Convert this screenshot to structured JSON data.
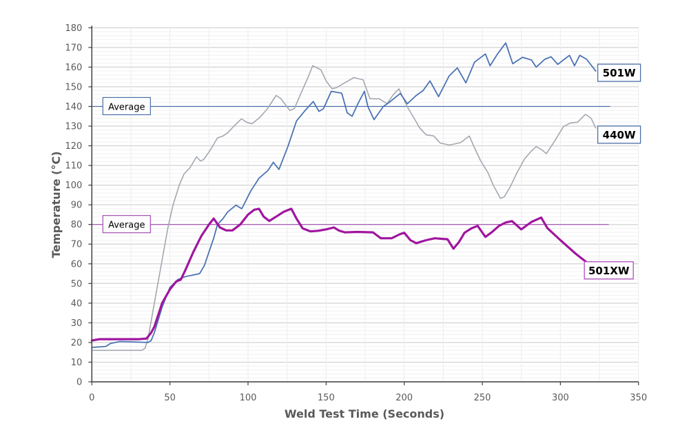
{
  "chart_data": {
    "type": "line",
    "title": "",
    "xlabel": "Weld Test Time (Seconds)",
    "ylabel": "Temperature (°C)",
    "xlim": [
      0,
      350
    ],
    "ylim": [
      0,
      180
    ],
    "xticks": [
      0,
      50,
      100,
      150,
      200,
      250,
      300,
      350
    ],
    "yticks": [
      0,
      10,
      20,
      30,
      40,
      50,
      60,
      70,
      80,
      90,
      100,
      110,
      120,
      130,
      140,
      150,
      160,
      170,
      180
    ],
    "grid": true,
    "series": [
      {
        "name": "440W",
        "color": "#a3a7b0",
        "width": 1.6,
        "points": [
          [
            0,
            16
          ],
          [
            32,
            16
          ],
          [
            34,
            17
          ],
          [
            36,
            22
          ],
          [
            40,
            40
          ],
          [
            45,
            62
          ],
          [
            48.6,
            78
          ],
          [
            52,
            90
          ],
          [
            56,
            100
          ],
          [
            59,
            105.6
          ],
          [
            63,
            109
          ],
          [
            67,
            114.4
          ],
          [
            69.5,
            112.3
          ],
          [
            71.6,
            113
          ],
          [
            76,
            118
          ],
          [
            80.4,
            124
          ],
          [
            84,
            125
          ],
          [
            87,
            126.6
          ],
          [
            91,
            130
          ],
          [
            95.8,
            133.7
          ],
          [
            99,
            132
          ],
          [
            102.5,
            131.2
          ],
          [
            107.6,
            134.5
          ],
          [
            112.2,
            138.6
          ],
          [
            118,
            145.6
          ],
          [
            121,
            144
          ],
          [
            126.8,
            137.9
          ],
          [
            129.7,
            139
          ],
          [
            134.3,
            147.4
          ],
          [
            138,
            154
          ],
          [
            141.4,
            160.7
          ],
          [
            146.7,
            158.6
          ],
          [
            150,
            153
          ],
          [
            153.8,
            149
          ],
          [
            156.8,
            149.6
          ],
          [
            161.9,
            152
          ],
          [
            167.8,
            154.7
          ],
          [
            173.7,
            153.5
          ],
          [
            178.1,
            143.9
          ],
          [
            184,
            143.9
          ],
          [
            189,
            141.4
          ],
          [
            193,
            146
          ],
          [
            196.6,
            149
          ],
          [
            202,
            139.8
          ],
          [
            206,
            134.4
          ],
          [
            210,
            129
          ],
          [
            214,
            125.6
          ],
          [
            219,
            125
          ],
          [
            223,
            121.4
          ],
          [
            229,
            120.4
          ],
          [
            236,
            121.6
          ],
          [
            241.7,
            125
          ],
          [
            245,
            119
          ],
          [
            249,
            112.3
          ],
          [
            253.6,
            106.3
          ],
          [
            257,
            100
          ],
          [
            261.6,
            93.3
          ],
          [
            264,
            94
          ],
          [
            268,
            99.3
          ],
          [
            272,
            106
          ],
          [
            277,
            113.3
          ],
          [
            281,
            117
          ],
          [
            284.5,
            119.6
          ],
          [
            288,
            118
          ],
          [
            291,
            116
          ],
          [
            296,
            122
          ],
          [
            302,
            129.8
          ],
          [
            306.5,
            131.6
          ],
          [
            311,
            132
          ],
          [
            316,
            136
          ],
          [
            319.7,
            134
          ],
          [
            322.6,
            129
          ]
        ]
      },
      {
        "name": "501W",
        "color": "#4a72b4",
        "width": 1.8,
        "points": [
          [
            0,
            17.5
          ],
          [
            9,
            18
          ],
          [
            12,
            19.5
          ],
          [
            18,
            20.5
          ],
          [
            30,
            20.2
          ],
          [
            36,
            20
          ],
          [
            38,
            21
          ],
          [
            40,
            25
          ],
          [
            45,
            38
          ],
          [
            50,
            48
          ],
          [
            55,
            52
          ],
          [
            60,
            53.5
          ],
          [
            66,
            54.5
          ],
          [
            69,
            55
          ],
          [
            72,
            59
          ],
          [
            75,
            66
          ],
          [
            78,
            73
          ],
          [
            80.4,
            80
          ],
          [
            84,
            83
          ],
          [
            87,
            86.4
          ],
          [
            92.3,
            89.8
          ],
          [
            96,
            88
          ],
          [
            101.6,
            96.8
          ],
          [
            107,
            103.5
          ],
          [
            112.7,
            107.4
          ],
          [
            116.2,
            111.6
          ],
          [
            119.8,
            108
          ],
          [
            125.5,
            119.6
          ],
          [
            131,
            132.6
          ],
          [
            136.5,
            137.9
          ],
          [
            141.8,
            142.5
          ],
          [
            145.4,
            137.5
          ],
          [
            148.3,
            138.9
          ],
          [
            153.3,
            147.7
          ],
          [
            160,
            146.7
          ],
          [
            163.5,
            136.8
          ],
          [
            166.6,
            135
          ],
          [
            170.4,
            141.5
          ],
          [
            174.5,
            147.7
          ],
          [
            176.7,
            140
          ],
          [
            180.7,
            133.3
          ],
          [
            186.6,
            140
          ],
          [
            190.3,
            142
          ],
          [
            197.5,
            146.6
          ],
          [
            202,
            141.4
          ],
          [
            207.7,
            145.6
          ],
          [
            212,
            148
          ],
          [
            216.5,
            153
          ],
          [
            222,
            145
          ],
          [
            228.7,
            155.4
          ],
          [
            234,
            159.6
          ],
          [
            239.5,
            152
          ],
          [
            245,
            162.5
          ],
          [
            252,
            166.7
          ],
          [
            255,
            160.7
          ],
          [
            260,
            167
          ],
          [
            265,
            172.3
          ],
          [
            269.5,
            161.7
          ],
          [
            275.7,
            165
          ],
          [
            281.5,
            163.6
          ],
          [
            284.5,
            160
          ],
          [
            290,
            164
          ],
          [
            294,
            165.3
          ],
          [
            298.3,
            161.4
          ],
          [
            305.8,
            166
          ],
          [
            309,
            160.7
          ],
          [
            312.4,
            166
          ],
          [
            316.8,
            164
          ],
          [
            322.6,
            158
          ]
        ]
      },
      {
        "name": "501XW",
        "color": "#a0159e",
        "width": 3.2,
        "points": [
          [
            0,
            21
          ],
          [
            5,
            21.7
          ],
          [
            30,
            21.7
          ],
          [
            35,
            22
          ],
          [
            38,
            25
          ],
          [
            40,
            28
          ],
          [
            45,
            40
          ],
          [
            50,
            47
          ],
          [
            54,
            51
          ],
          [
            57,
            52
          ],
          [
            60,
            57
          ],
          [
            65,
            66
          ],
          [
            70,
            74
          ],
          [
            75,
            80
          ],
          [
            78,
            83
          ],
          [
            82,
            78.5
          ],
          [
            86,
            77
          ],
          [
            90,
            77
          ],
          [
            95,
            80
          ],
          [
            100,
            85
          ],
          [
            104,
            87.5
          ],
          [
            107,
            88
          ],
          [
            110,
            84
          ],
          [
            113.6,
            81.8
          ],
          [
            118,
            84
          ],
          [
            123,
            86.5
          ],
          [
            127.7,
            88
          ],
          [
            131,
            83
          ],
          [
            135,
            78
          ],
          [
            140,
            76.5
          ],
          [
            145,
            76.8
          ],
          [
            150,
            77.5
          ],
          [
            155,
            78.5
          ],
          [
            158,
            77
          ],
          [
            162,
            76
          ],
          [
            170,
            76.2
          ],
          [
            180,
            76
          ],
          [
            185,
            73
          ],
          [
            192,
            73
          ],
          [
            197,
            75
          ],
          [
            200,
            75.8
          ],
          [
            204,
            72
          ],
          [
            207.7,
            70.5
          ],
          [
            214,
            72
          ],
          [
            219.6,
            73
          ],
          [
            227.7,
            72.5
          ],
          [
            231.5,
            67.7
          ],
          [
            235,
            71
          ],
          [
            238.6,
            75.8
          ],
          [
            243,
            78
          ],
          [
            247,
            79.3
          ],
          [
            252,
            73.7
          ],
          [
            256,
            76
          ],
          [
            260.7,
            79.3
          ],
          [
            265,
            81
          ],
          [
            269,
            81.7
          ],
          [
            274.9,
            77.5
          ],
          [
            281.5,
            81.3
          ],
          [
            287.7,
            83.5
          ],
          [
            291.6,
            78.2
          ],
          [
            300,
            72
          ],
          [
            310,
            65
          ],
          [
            318,
            60
          ]
        ]
      }
    ],
    "averages": [
      {
        "label": "Average",
        "value": 140,
        "series": "501W",
        "color": "#4a6ea8",
        "x_end": 332
      },
      {
        "label": "Average",
        "value": 80,
        "series": "501XW",
        "color": "#a04cb0",
        "x_end": 331
      }
    ],
    "series_labels": [
      "501W",
      "440W",
      "501XW"
    ],
    "legend": "inline-right"
  }
}
